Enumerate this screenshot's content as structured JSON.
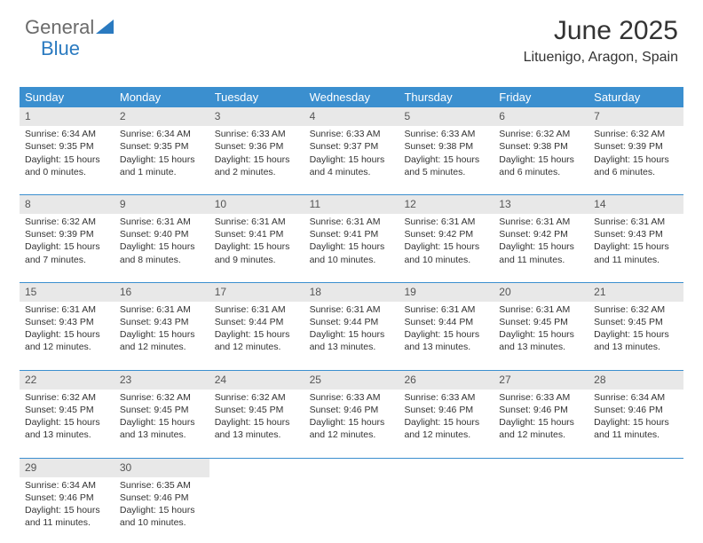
{
  "brand": {
    "part1": "General",
    "part2": "Blue"
  },
  "title": "June 2025",
  "location": "Lituenigo, Aragon, Spain",
  "colors": {
    "header_bg": "#3b8fcf",
    "date_bar_bg": "#e8e8e8",
    "rule": "#3b8fcf",
    "text": "#333333",
    "logo_gray": "#6b6b6b",
    "logo_blue": "#2a7ac0"
  },
  "day_names": [
    "Sunday",
    "Monday",
    "Tuesday",
    "Wednesday",
    "Thursday",
    "Friday",
    "Saturday"
  ],
  "weeks": [
    [
      {
        "date": "1",
        "sunrise": "Sunrise: 6:34 AM",
        "sunset": "Sunset: 9:35 PM",
        "daylight": "Daylight: 15 hours and 0 minutes."
      },
      {
        "date": "2",
        "sunrise": "Sunrise: 6:34 AM",
        "sunset": "Sunset: 9:35 PM",
        "daylight": "Daylight: 15 hours and 1 minute."
      },
      {
        "date": "3",
        "sunrise": "Sunrise: 6:33 AM",
        "sunset": "Sunset: 9:36 PM",
        "daylight": "Daylight: 15 hours and 2 minutes."
      },
      {
        "date": "4",
        "sunrise": "Sunrise: 6:33 AM",
        "sunset": "Sunset: 9:37 PM",
        "daylight": "Daylight: 15 hours and 4 minutes."
      },
      {
        "date": "5",
        "sunrise": "Sunrise: 6:33 AM",
        "sunset": "Sunset: 9:38 PM",
        "daylight": "Daylight: 15 hours and 5 minutes."
      },
      {
        "date": "6",
        "sunrise": "Sunrise: 6:32 AM",
        "sunset": "Sunset: 9:38 PM",
        "daylight": "Daylight: 15 hours and 6 minutes."
      },
      {
        "date": "7",
        "sunrise": "Sunrise: 6:32 AM",
        "sunset": "Sunset: 9:39 PM",
        "daylight": "Daylight: 15 hours and 6 minutes."
      }
    ],
    [
      {
        "date": "8",
        "sunrise": "Sunrise: 6:32 AM",
        "sunset": "Sunset: 9:39 PM",
        "daylight": "Daylight: 15 hours and 7 minutes."
      },
      {
        "date": "9",
        "sunrise": "Sunrise: 6:31 AM",
        "sunset": "Sunset: 9:40 PM",
        "daylight": "Daylight: 15 hours and 8 minutes."
      },
      {
        "date": "10",
        "sunrise": "Sunrise: 6:31 AM",
        "sunset": "Sunset: 9:41 PM",
        "daylight": "Daylight: 15 hours and 9 minutes."
      },
      {
        "date": "11",
        "sunrise": "Sunrise: 6:31 AM",
        "sunset": "Sunset: 9:41 PM",
        "daylight": "Daylight: 15 hours and 10 minutes."
      },
      {
        "date": "12",
        "sunrise": "Sunrise: 6:31 AM",
        "sunset": "Sunset: 9:42 PM",
        "daylight": "Daylight: 15 hours and 10 minutes."
      },
      {
        "date": "13",
        "sunrise": "Sunrise: 6:31 AM",
        "sunset": "Sunset: 9:42 PM",
        "daylight": "Daylight: 15 hours and 11 minutes."
      },
      {
        "date": "14",
        "sunrise": "Sunrise: 6:31 AM",
        "sunset": "Sunset: 9:43 PM",
        "daylight": "Daylight: 15 hours and 11 minutes."
      }
    ],
    [
      {
        "date": "15",
        "sunrise": "Sunrise: 6:31 AM",
        "sunset": "Sunset: 9:43 PM",
        "daylight": "Daylight: 15 hours and 12 minutes."
      },
      {
        "date": "16",
        "sunrise": "Sunrise: 6:31 AM",
        "sunset": "Sunset: 9:43 PM",
        "daylight": "Daylight: 15 hours and 12 minutes."
      },
      {
        "date": "17",
        "sunrise": "Sunrise: 6:31 AM",
        "sunset": "Sunset: 9:44 PM",
        "daylight": "Daylight: 15 hours and 12 minutes."
      },
      {
        "date": "18",
        "sunrise": "Sunrise: 6:31 AM",
        "sunset": "Sunset: 9:44 PM",
        "daylight": "Daylight: 15 hours and 13 minutes."
      },
      {
        "date": "19",
        "sunrise": "Sunrise: 6:31 AM",
        "sunset": "Sunset: 9:44 PM",
        "daylight": "Daylight: 15 hours and 13 minutes."
      },
      {
        "date": "20",
        "sunrise": "Sunrise: 6:31 AM",
        "sunset": "Sunset: 9:45 PM",
        "daylight": "Daylight: 15 hours and 13 minutes."
      },
      {
        "date": "21",
        "sunrise": "Sunrise: 6:32 AM",
        "sunset": "Sunset: 9:45 PM",
        "daylight": "Daylight: 15 hours and 13 minutes."
      }
    ],
    [
      {
        "date": "22",
        "sunrise": "Sunrise: 6:32 AM",
        "sunset": "Sunset: 9:45 PM",
        "daylight": "Daylight: 15 hours and 13 minutes."
      },
      {
        "date": "23",
        "sunrise": "Sunrise: 6:32 AM",
        "sunset": "Sunset: 9:45 PM",
        "daylight": "Daylight: 15 hours and 13 minutes."
      },
      {
        "date": "24",
        "sunrise": "Sunrise: 6:32 AM",
        "sunset": "Sunset: 9:45 PM",
        "daylight": "Daylight: 15 hours and 13 minutes."
      },
      {
        "date": "25",
        "sunrise": "Sunrise: 6:33 AM",
        "sunset": "Sunset: 9:46 PM",
        "daylight": "Daylight: 15 hours and 12 minutes."
      },
      {
        "date": "26",
        "sunrise": "Sunrise: 6:33 AM",
        "sunset": "Sunset: 9:46 PM",
        "daylight": "Daylight: 15 hours and 12 minutes."
      },
      {
        "date": "27",
        "sunrise": "Sunrise: 6:33 AM",
        "sunset": "Sunset: 9:46 PM",
        "daylight": "Daylight: 15 hours and 12 minutes."
      },
      {
        "date": "28",
        "sunrise": "Sunrise: 6:34 AM",
        "sunset": "Sunset: 9:46 PM",
        "daylight": "Daylight: 15 hours and 11 minutes."
      }
    ],
    [
      {
        "date": "29",
        "sunrise": "Sunrise: 6:34 AM",
        "sunset": "Sunset: 9:46 PM",
        "daylight": "Daylight: 15 hours and 11 minutes."
      },
      {
        "date": "30",
        "sunrise": "Sunrise: 6:35 AM",
        "sunset": "Sunset: 9:46 PM",
        "daylight": "Daylight: 15 hours and 10 minutes."
      },
      {
        "empty": true
      },
      {
        "empty": true
      },
      {
        "empty": true
      },
      {
        "empty": true
      },
      {
        "empty": true
      }
    ]
  ]
}
